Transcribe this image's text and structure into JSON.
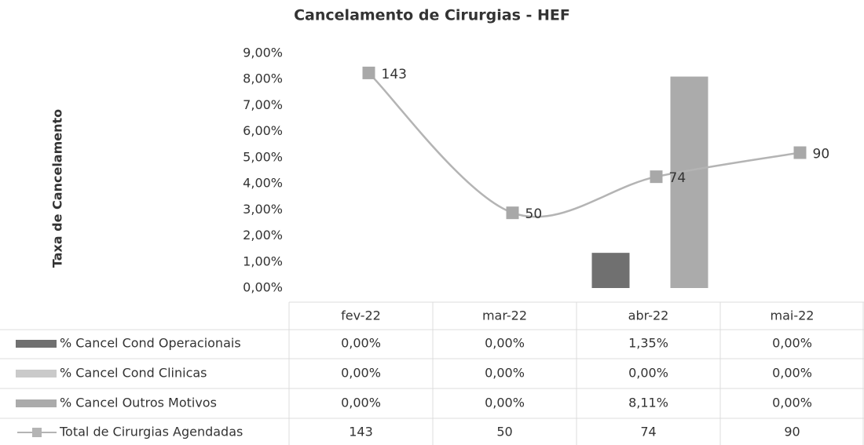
{
  "chart_data": {
    "type": "bar",
    "title": "Cancelamento de Cirurgias - HEF",
    "y_label": "Taxa de Cancelamento",
    "categories": [
      "fev-22",
      "mar-22",
      "abr-22",
      "mai-22"
    ],
    "ylim": [
      0,
      9
    ],
    "yticks": [
      {
        "value": 0,
        "label": "0,00%"
      },
      {
        "value": 1,
        "label": "1,00%"
      },
      {
        "value": 2,
        "label": "2,00%"
      },
      {
        "value": 3,
        "label": "3,00%"
      },
      {
        "value": 4,
        "label": "4,00%"
      },
      {
        "value": 5,
        "label": "5,00%"
      },
      {
        "value": 6,
        "label": "6,00%"
      },
      {
        "value": 7,
        "label": "7,00%"
      },
      {
        "value": 8,
        "label": "8,00%"
      },
      {
        "value": 9,
        "label": "9,00%"
      }
    ],
    "y2lim": [
      0,
      156
    ],
    "series": [
      {
        "name": "% Cancel Cond Operacionais",
        "color": "#707070",
        "values": [
          0,
          0,
          1.35,
          0
        ],
        "value_labels": [
          "0,00%",
          "0,00%",
          "1,35%",
          "0,00%"
        ]
      },
      {
        "name": "% Cancel Cond Clinicas",
        "color": "#cacaca",
        "values": [
          0,
          0,
          0,
          0
        ],
        "value_labels": [
          "0,00%",
          "0,00%",
          "0,00%",
          "0,00%"
        ]
      },
      {
        "name": "% Cancel Outros Motivos",
        "color": "#ababab",
        "values": [
          0,
          0,
          8.11,
          0
        ],
        "value_labels": [
          "0,00%",
          "0,00%",
          "8,11%",
          "0,00%"
        ]
      },
      {
        "name": "Total de Cirurgias Agendadas",
        "type": "line",
        "axis": "y2",
        "color": "#b4b4b4",
        "values": [
          143,
          50,
          74,
          90
        ]
      }
    ]
  }
}
